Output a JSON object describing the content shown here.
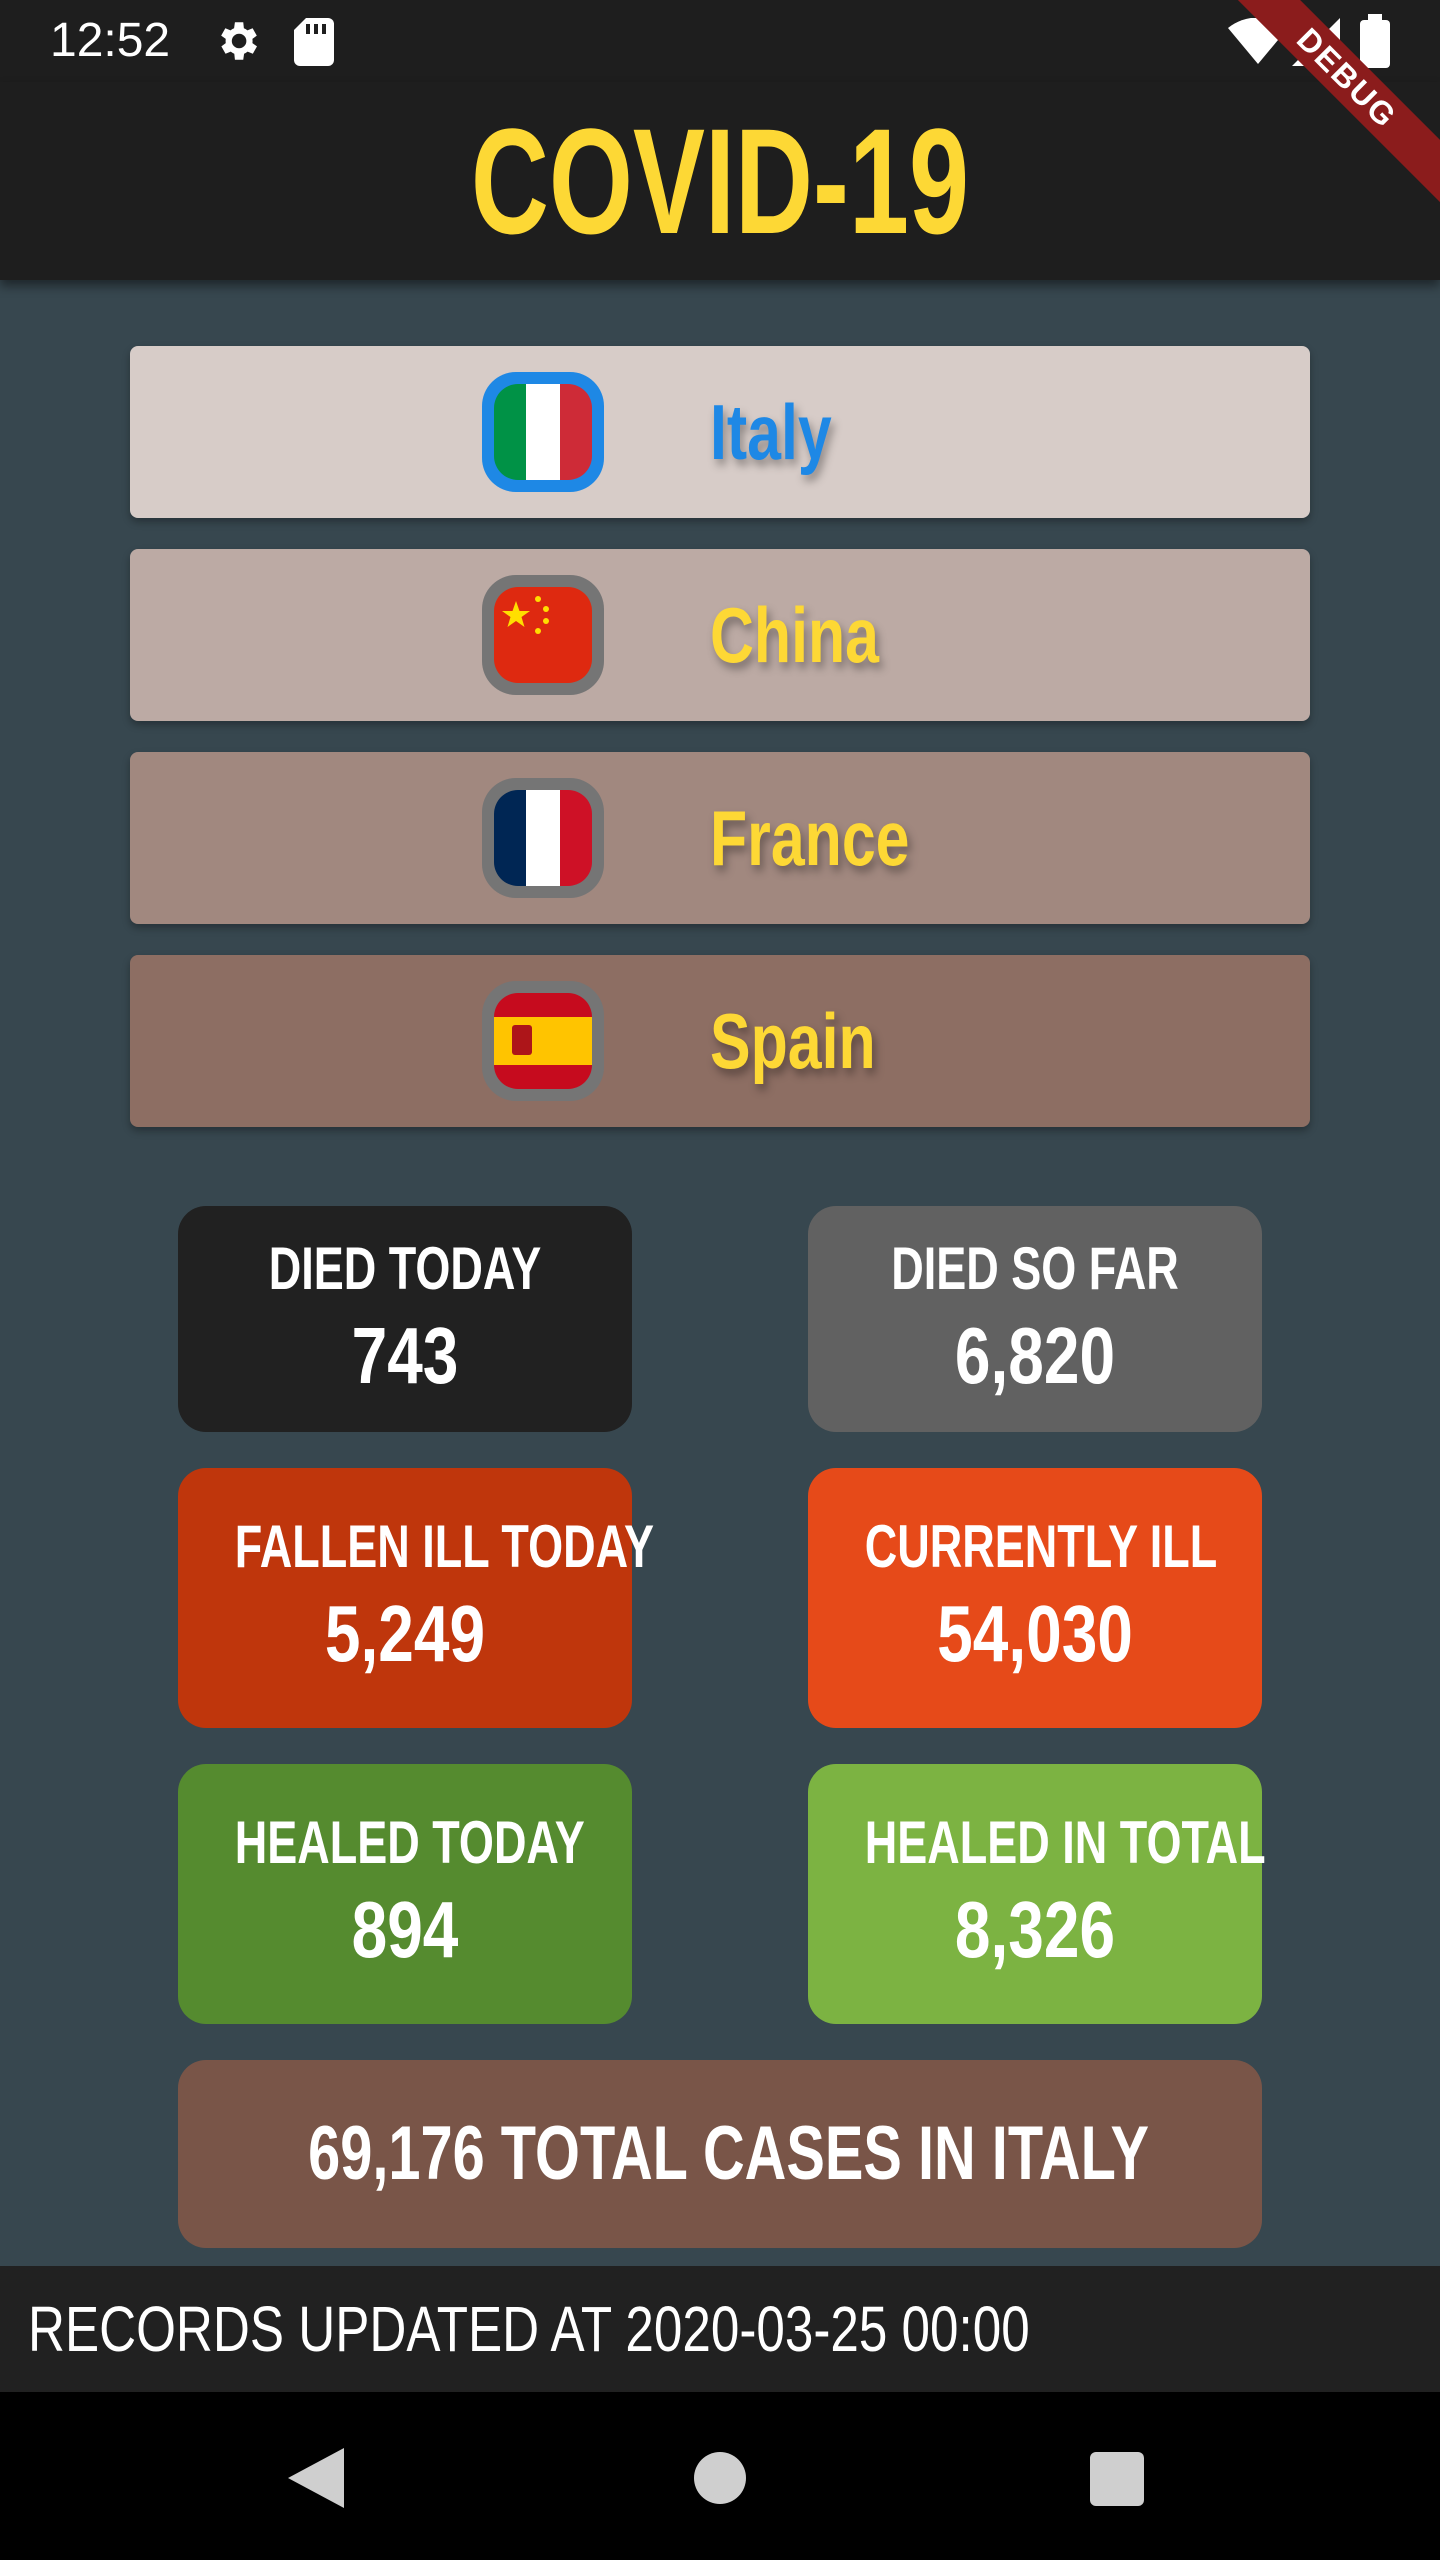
{
  "status_bar": {
    "time": "12:52"
  },
  "app_bar": {
    "title": "COVID-19",
    "debug_label": "DEBUG"
  },
  "countries": [
    {
      "name": "Italy",
      "selected": true,
      "background": "#d7ccc8"
    },
    {
      "name": "China",
      "selected": false,
      "background": "#bcaaa4"
    },
    {
      "name": "France",
      "selected": false,
      "background": "#a1887f"
    },
    {
      "name": "Spain",
      "selected": false,
      "background": "#8d6e63"
    }
  ],
  "stats": {
    "died_today": {
      "label": "DIED TODAY",
      "value": "743",
      "color": "#212121"
    },
    "died_so_far": {
      "label": "DIED SO FAR",
      "value": "6,820",
      "color": "#616161"
    },
    "fallen_ill_today": {
      "label": "FALLEN ILL TODAY",
      "value": "5,249",
      "color": "#bf360c"
    },
    "currently_ill": {
      "label": "CURRENTLY ILL",
      "value": "54,030",
      "color": "#e64a19"
    },
    "healed_today": {
      "label": "HEALED TODAY",
      "value": "894",
      "color": "#558b2f"
    },
    "healed_in_total": {
      "label": "HEALED IN TOTAL",
      "value": "8,326",
      "color": "#7cb342"
    }
  },
  "total": {
    "text": "69,176 TOTAL CASES IN ITALY",
    "color": "#795548"
  },
  "footer": {
    "text": "RECORDS UPDATED AT 2020-03-25 00:00"
  },
  "colors": {
    "accent": "#fdd835",
    "selected": "#1e88e5",
    "background": "#37474f"
  }
}
